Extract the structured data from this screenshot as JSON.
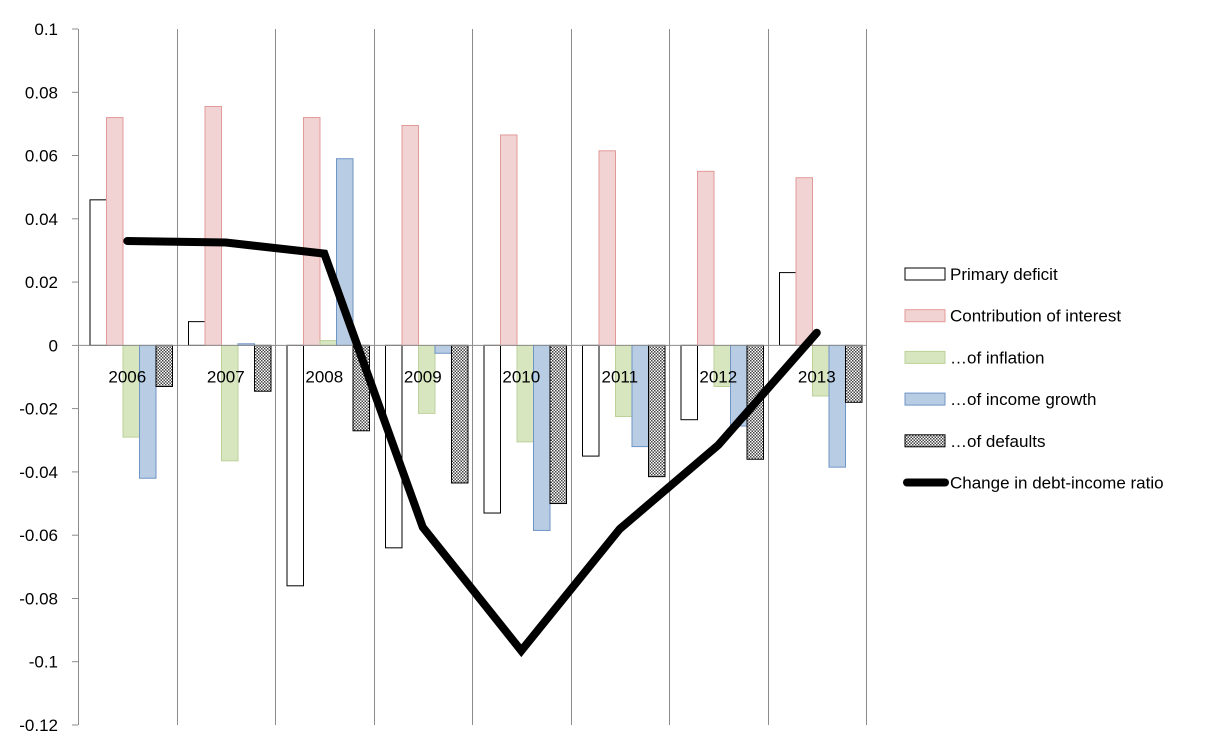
{
  "chart_data": {
    "type": "bar",
    "categories": [
      "2006",
      "2007",
      "2008",
      "2009",
      "2010",
      "2011",
      "2012",
      "2013"
    ],
    "ylim": [
      -0.12,
      0.1
    ],
    "yticks": [
      "0.1",
      "0.08",
      "0.06",
      "0.04",
      "0.02",
      "0",
      "-0.02",
      "-0.04",
      "-0.06",
      "-0.08",
      "-0.1",
      "-0.12"
    ],
    "ytick_values": [
      0.1,
      0.08,
      0.06,
      0.04,
      0.02,
      0,
      -0.02,
      -0.04,
      -0.06,
      -0.08,
      -0.1,
      -0.12
    ],
    "grid": "vertical",
    "legend_position": "right",
    "series": [
      {
        "name": "Primary deficit",
        "kind": "bar",
        "fill": "#ffffff",
        "stroke": "#000000",
        "pattern": "none",
        "values": [
          0.046,
          0.0075,
          -0.076,
          -0.064,
          -0.053,
          -0.035,
          -0.0235,
          0.023
        ]
      },
      {
        "name": "Contribution of interest",
        "kind": "bar",
        "fill": "#f2d3d3",
        "stroke": "#e2999a",
        "pattern": "none",
        "values": [
          0.072,
          0.0755,
          0.072,
          0.0695,
          0.0665,
          0.0615,
          0.055,
          0.053
        ]
      },
      {
        "name": "…of inflation",
        "kind": "bar",
        "fill": "#d8e6c0",
        "stroke": "#bcd19a",
        "pattern": "none",
        "values": [
          -0.029,
          -0.0365,
          0.0015,
          -0.0215,
          -0.0305,
          -0.0225,
          -0.013,
          -0.016
        ]
      },
      {
        "name": "…of income growth",
        "kind": "bar",
        "fill": "#b8cce4",
        "stroke": "#6f94c6",
        "pattern": "none",
        "values": [
          -0.042,
          0.0005,
          0.059,
          -0.0025,
          -0.0585,
          -0.032,
          -0.0255,
          -0.0385
        ]
      },
      {
        "name": "…of defaults",
        "kind": "bar",
        "fill": "#c4c4c4",
        "stroke": "#000000",
        "pattern": "dots",
        "values": [
          -0.013,
          -0.0145,
          -0.027,
          -0.0435,
          -0.05,
          -0.0415,
          -0.036,
          -0.018
        ]
      },
      {
        "name": "Change in debt-income ratio",
        "kind": "line",
        "stroke": "#000000",
        "values": [
          0.033,
          0.0325,
          0.029,
          -0.0575,
          -0.0965,
          -0.058,
          -0.0315,
          0.004
        ]
      }
    ]
  }
}
